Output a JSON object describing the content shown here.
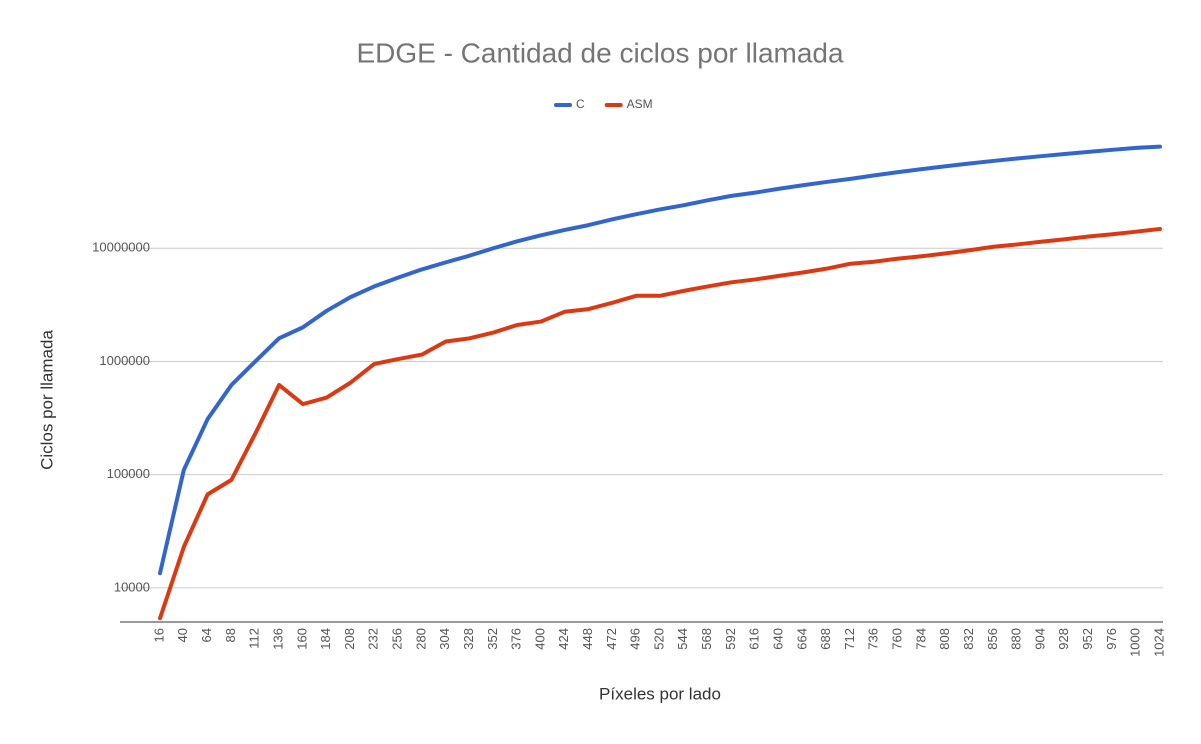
{
  "chart_data": {
    "type": "line",
    "title": "EDGE - Cantidad de ciclos por llamada",
    "xlabel": "Píxeles por lado",
    "ylabel": "Ciclos por llamada",
    "x": [
      16,
      40,
      64,
      88,
      112,
      136,
      160,
      184,
      208,
      232,
      256,
      280,
      304,
      328,
      352,
      376,
      400,
      424,
      448,
      472,
      496,
      520,
      544,
      568,
      592,
      616,
      640,
      664,
      688,
      712,
      736,
      760,
      784,
      808,
      832,
      856,
      880,
      904,
      928,
      952,
      976,
      1000,
      1024
    ],
    "xlim": [
      16,
      1024
    ],
    "xticks": [
      16,
      40,
      64,
      88,
      112,
      136,
      160,
      184,
      208,
      232,
      256,
      280,
      304,
      328,
      352,
      376,
      400,
      424,
      448,
      472,
      496,
      520,
      544,
      568,
      592,
      616,
      640,
      664,
      688,
      712,
      736,
      760,
      784,
      808,
      832,
      856,
      880,
      904,
      928,
      952,
      976,
      1000,
      1024
    ],
    "ylim": [
      5000,
      100000000
    ],
    "yticks": [
      10000,
      100000,
      1000000,
      10000000
    ],
    "log_y": true,
    "grid": true,
    "legend": "top",
    "series": [
      {
        "name": "C",
        "color": "#3366cc",
        "values": [
          13500,
          110000,
          310000,
          620000,
          1000000,
          1600000,
          2000000,
          2800000,
          3700000,
          4600000,
          5500000,
          6500000,
          7500000,
          8600000,
          10000000,
          11500000,
          13000000,
          14500000,
          16000000,
          18000000,
          20000000,
          22000000,
          24000000,
          26500000,
          29000000,
          31000000,
          33500000,
          36000000,
          38500000,
          41000000,
          44000000,
          47000000,
          50000000,
          53000000,
          56000000,
          59000000,
          62000000,
          65000000,
          68000000,
          71000000,
          74000000,
          77000000,
          79000000
        ]
      },
      {
        "name": "ASM",
        "color": "#dc3912",
        "values": [
          5400,
          23000,
          67000,
          90000,
          230000,
          620000,
          420000,
          480000,
          650000,
          950000,
          1050000,
          1150000,
          1500000,
          1600000,
          1800000,
          2100000,
          2250000,
          2750000,
          2900000,
          3300000,
          3800000,
          3800000,
          4200000,
          4600000,
          5000000,
          5300000,
          5700000,
          6100000,
          6600000,
          7300000,
          7600000,
          8100000,
          8500000,
          9000000,
          9600000,
          10300000,
          10800000,
          11400000,
          12000000,
          12700000,
          13300000,
          14000000,
          14800000
        ]
      }
    ]
  }
}
